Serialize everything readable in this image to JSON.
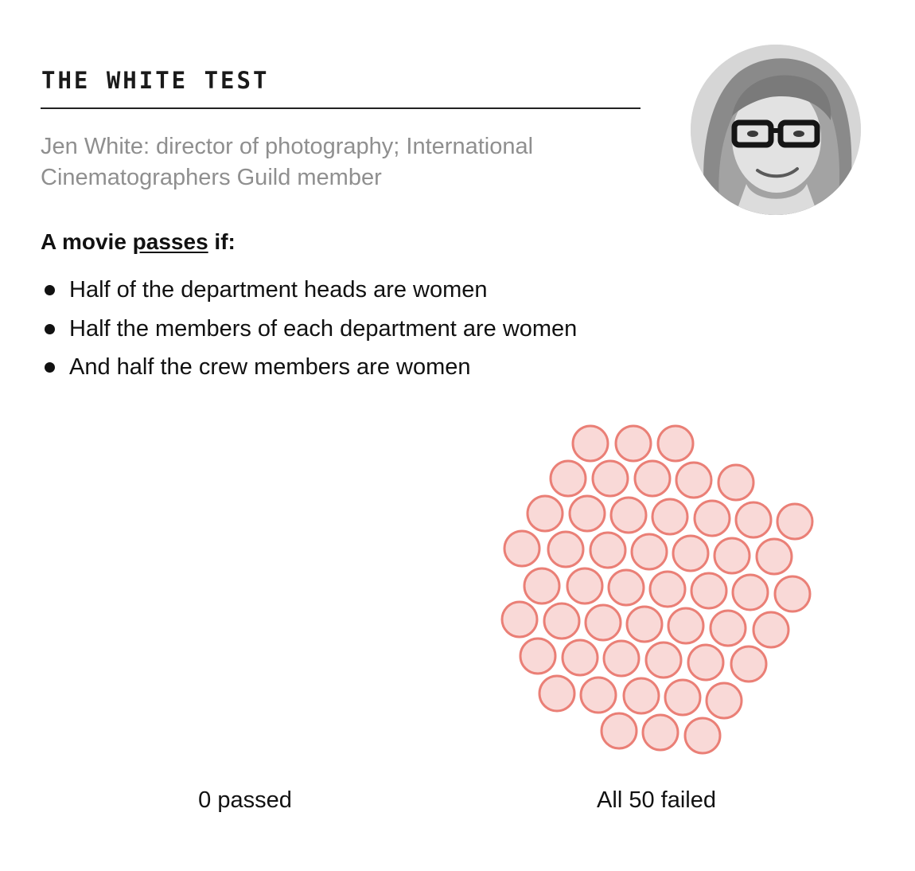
{
  "header": {
    "title": "THE WHITE TEST",
    "subtitle": "Jen White: director of photography; International Cinematographers Guild member"
  },
  "rule": {
    "heading_prefix": "A movie",
    "heading_underlined": "passes",
    "heading_suffix": "if:",
    "criteria": [
      "Half of the department heads are women",
      "Half the members of each department are women",
      "And half the crew members are women"
    ]
  },
  "colors": {
    "failed_fill": "#f9d9d7",
    "failed_stroke": "#ea7f76",
    "passed_fill": "#c8e6c9",
    "passed_stroke": "#5fae63"
  },
  "chart_data": {
    "type": "scatter",
    "title": "",
    "groups": [
      {
        "name": "passed",
        "label": "0 passed",
        "count": 0
      },
      {
        "name": "failed",
        "label": "All 50 failed",
        "count": 50
      }
    ],
    "total_movies": 50
  }
}
